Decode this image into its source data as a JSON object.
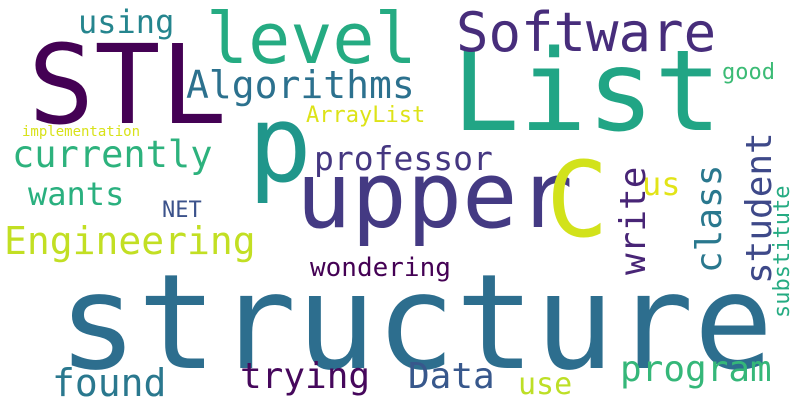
{
  "words": [
    {
      "text": "structure",
      "color": "#2d6e8e",
      "rotated": false
    },
    {
      "text": "List",
      "color": "#21a585",
      "rotated": false
    },
    {
      "text": "STL",
      "color": "#440154",
      "rotated": false
    },
    {
      "text": "upper",
      "color": "#443a83",
      "rotated": false
    },
    {
      "text": "p",
      "color": "#20968b",
      "rotated": false
    },
    {
      "text": "C",
      "color": "#d2e21b",
      "rotated": false
    },
    {
      "text": "level",
      "color": "#25ab82",
      "rotated": false
    },
    {
      "text": "Software",
      "color": "#472d7b",
      "rotated": false
    },
    {
      "text": "Algorithms",
      "color": "#2c718e",
      "rotated": false
    },
    {
      "text": "Engineering",
      "color": "#c2df23",
      "rotated": false
    },
    {
      "text": "currently",
      "color": "#2db27d",
      "rotated": false
    },
    {
      "text": "professor",
      "color": "#453781",
      "rotated": false
    },
    {
      "text": "program",
      "color": "#35b779",
      "rotated": false
    },
    {
      "text": "trying",
      "color": "#46085c",
      "rotated": false
    },
    {
      "text": "Data",
      "color": "#38588c",
      "rotated": false
    },
    {
      "text": "found",
      "color": "#2a788e",
      "rotated": false
    },
    {
      "text": "using",
      "color": "#25858e",
      "rotated": false
    },
    {
      "text": "wants",
      "color": "#2ab07f",
      "rotated": false
    },
    {
      "text": "wondering",
      "color": "#440154",
      "rotated": false
    },
    {
      "text": "us",
      "color": "#e2e418",
      "rotated": false
    },
    {
      "text": "use",
      "color": "#bddf26",
      "rotated": false
    },
    {
      "text": "NET",
      "color": "#3b528b",
      "rotated": false
    },
    {
      "text": "ArrayList",
      "color": "#dde318",
      "rotated": false
    },
    {
      "text": "good",
      "color": "#3bbb75",
      "rotated": false
    },
    {
      "text": "implementation",
      "color": "#d8e219",
      "rotated": false
    },
    {
      "text": "write",
      "color": "#482576",
      "rotated": true
    },
    {
      "text": "class",
      "color": "#2a788e",
      "rotated": true
    },
    {
      "text": "student",
      "color": "#3e4989",
      "rotated": true
    },
    {
      "text": "substitute",
      "color": "#25ab82",
      "rotated": true
    }
  ]
}
